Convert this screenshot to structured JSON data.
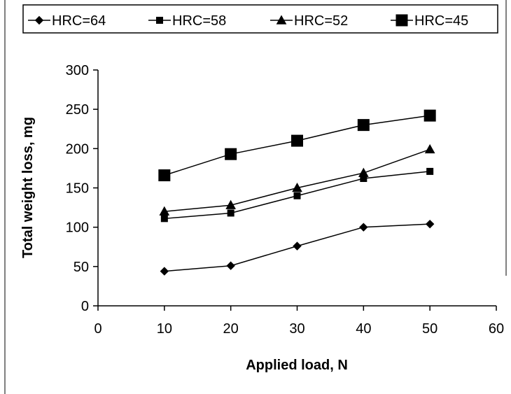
{
  "chart_data": {
    "type": "line",
    "title": "",
    "xlabel": "Applied load, N",
    "ylabel": "Total weight loss, mg",
    "xlim": [
      0,
      60
    ],
    "ylim": [
      0,
      300
    ],
    "xticks": [
      0,
      10,
      20,
      30,
      40,
      50,
      60
    ],
    "yticks": [
      0,
      50,
      100,
      150,
      200,
      250,
      300
    ],
    "grid": false,
    "legend_position": "top",
    "x": [
      10,
      20,
      30,
      40,
      50
    ],
    "series": [
      {
        "name": "HRC=64",
        "marker": "diamond",
        "values": [
          44,
          51,
          76,
          100,
          104
        ]
      },
      {
        "name": "HRC=58",
        "marker": "square-small",
        "values": [
          111,
          118,
          140,
          162,
          171
        ]
      },
      {
        "name": "HRC=52",
        "marker": "triangle",
        "values": [
          120,
          128,
          150,
          169,
          199
        ]
      },
      {
        "name": "HRC=45",
        "marker": "square-large",
        "values": [
          166,
          193,
          210,
          230,
          242
        ]
      }
    ],
    "colors": {
      "line": "#000000",
      "background": "#ffffff"
    }
  }
}
